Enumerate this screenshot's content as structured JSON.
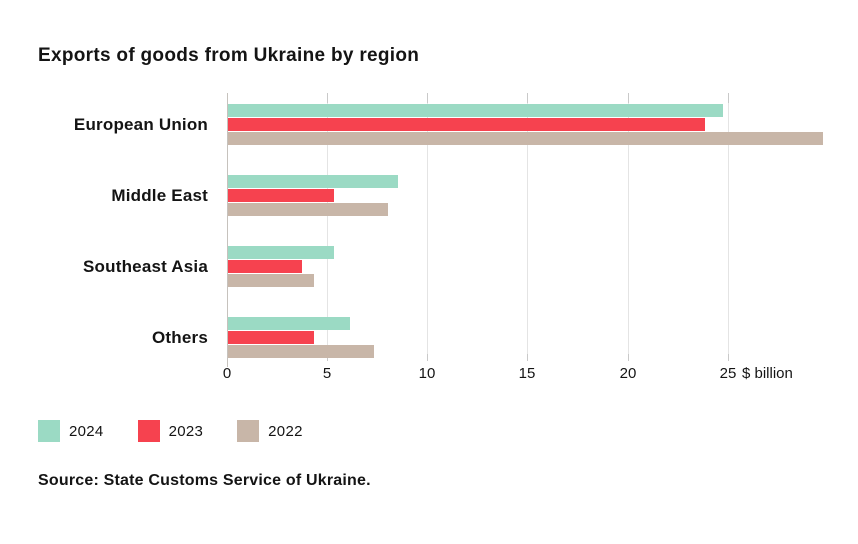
{
  "title": "Exports of goods from Ukraine by region",
  "source_note": "Source: State Customs Service of Ukraine.",
  "chart_data": {
    "type": "bar",
    "orientation": "horizontal",
    "title": "Exports of goods from Ukraine by region",
    "categories": [
      "European Union",
      "Middle East",
      "Southeast Asia",
      "Others"
    ],
    "series": [
      {
        "name": "2024",
        "color": "#9bdac4",
        "values": [
          24.7,
          8.5,
          5.3,
          6.1
        ]
      },
      {
        "name": "2023",
        "color": "#f6424f",
        "values": [
          23.8,
          5.3,
          3.7,
          4.3
        ]
      },
      {
        "name": "2022",
        "color": "#c8b6a8",
        "values": [
          29.7,
          8.0,
          4.3,
          7.3
        ]
      }
    ],
    "x_ticks": [
      0,
      5,
      10,
      15,
      20,
      25
    ],
    "x_unit_suffix": "$ billion",
    "xlim": [
      0,
      31.5
    ],
    "grid": true,
    "legend_position": "bottom",
    "colors": {
      "grid": "#e4e4e4",
      "axis": "#c6c2bd",
      "text": "#141414",
      "background": "#ffffff"
    }
  }
}
